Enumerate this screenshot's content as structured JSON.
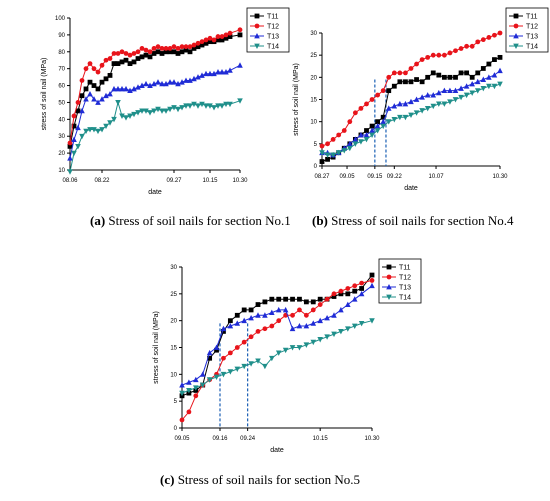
{
  "legend_order": [
    "T11",
    "T12",
    "T13",
    "T14"
  ],
  "styles": {
    "T11": {
      "color": "#000000",
      "marker": "square"
    },
    "T12": {
      "color": "#e8141b",
      "marker": "circle"
    },
    "T13": {
      "color": "#1f2bd6",
      "marker": "triangle"
    },
    "T14": {
      "color": "#1f8f8a",
      "marker": "triangle-down"
    }
  },
  "dash_color": "#1a5fb4",
  "chart_data": [
    {
      "type": "line",
      "caption_letter": "(a)",
      "caption_text": " Stress of soil nails for section No.1",
      "xlabel": "date",
      "ylabel": "stress of soil nail (MPa)",
      "ylim": [
        10,
        100
      ],
      "yticks": [
        10,
        20,
        30,
        40,
        50,
        60,
        70,
        80,
        90,
        100
      ],
      "xlim": [
        0,
        85
      ],
      "xticks": [
        {
          "x": 0,
          "label": "08.06"
        },
        {
          "x": 16,
          "label": "08.22"
        },
        {
          "x": 52,
          "label": "09.27"
        },
        {
          "x": 70,
          "label": "10.15"
        },
        {
          "x": 85,
          "label": "10.30"
        }
      ],
      "x": [
        0,
        2,
        4,
        6,
        8,
        10,
        12,
        14,
        16,
        18,
        20,
        22,
        24,
        26,
        28,
        30,
        32,
        34,
        36,
        38,
        40,
        42,
        44,
        46,
        48,
        50,
        52,
        54,
        56,
        58,
        60,
        62,
        64,
        66,
        68,
        70,
        72,
        74,
        76,
        78,
        80,
        85
      ],
      "series": [
        {
          "name": "T11",
          "values": [
            24,
            36,
            45,
            54,
            58,
            62,
            60,
            58,
            62,
            64,
            66,
            73,
            73,
            74,
            75,
            73,
            74,
            76,
            77,
            78,
            77,
            79,
            80,
            79,
            80,
            80,
            80,
            79,
            80,
            81,
            80,
            82,
            83,
            84,
            85,
            86,
            86,
            87,
            87,
            88,
            89,
            90
          ]
        },
        {
          "name": "T12",
          "values": [
            26,
            42,
            50,
            63,
            70,
            73,
            70,
            68,
            72,
            75,
            76,
            79,
            79,
            80,
            79,
            78,
            79,
            80,
            82,
            81,
            80,
            82,
            83,
            82,
            82,
            82,
            83,
            82,
            83,
            83,
            83,
            84,
            85,
            86,
            87,
            88,
            87,
            89,
            89,
            90,
            91,
            93
          ]
        },
        {
          "name": "T13",
          "values": [
            17,
            28,
            35,
            45,
            52,
            55,
            52,
            50,
            52,
            54,
            55,
            58,
            58,
            58,
            58,
            57,
            58,
            59,
            60,
            61,
            60,
            61,
            62,
            61,
            61,
            62,
            62,
            61,
            62,
            63,
            63,
            64,
            65,
            66,
            67,
            67,
            67,
            68,
            68,
            68,
            69,
            72
          ]
        },
        {
          "name": "T14",
          "values": [
            9,
            20,
            24,
            30,
            33,
            34,
            34,
            33,
            34,
            36,
            38,
            40,
            50,
            42,
            41,
            42,
            43,
            44,
            45,
            45,
            44,
            45,
            46,
            45,
            45,
            46,
            47,
            46,
            47,
            48,
            48,
            49,
            48,
            49,
            48,
            48,
            47,
            48,
            48,
            49,
            49,
            51
          ]
        }
      ],
      "dashed_x": [],
      "legend_position": "top-right"
    },
    {
      "type": "line",
      "caption_letter": "(b)",
      "caption_text": " Stress of soil nails for section No.4",
      "xlabel": "date",
      "ylabel": "stress of soil nail (MPa)",
      "ylim": [
        0,
        30
      ],
      "yticks": [
        0,
        5,
        10,
        15,
        20,
        25,
        30
      ],
      "xlim": [
        0,
        64
      ],
      "xticks": [
        {
          "x": 0,
          "label": "08.27"
        },
        {
          "x": 9,
          "label": "09.05"
        },
        {
          "x": 19,
          "label": "09.15"
        },
        {
          "x": 26,
          "label": "09.22"
        },
        {
          "x": 41,
          "label": "10.07"
        },
        {
          "x": 64,
          "label": "10.30"
        }
      ],
      "x": [
        0,
        2,
        4,
        6,
        8,
        10,
        12,
        14,
        16,
        18,
        20,
        22,
        24,
        26,
        28,
        30,
        32,
        34,
        36,
        38,
        40,
        42,
        44,
        46,
        48,
        50,
        52,
        54,
        56,
        58,
        60,
        62,
        64
      ],
      "series": [
        {
          "name": "T11",
          "values": [
            1,
            1.5,
            2,
            3,
            4,
            5,
            6,
            7,
            8,
            9,
            10,
            11,
            17,
            18,
            19,
            19,
            19,
            19.5,
            19,
            20,
            21,
            20.5,
            20,
            20,
            20,
            21,
            21,
            20,
            21,
            22,
            23,
            24,
            24.5
          ]
        },
        {
          "name": "T12",
          "values": [
            4.5,
            5,
            6,
            7,
            8,
            10,
            12,
            13,
            14,
            15,
            16,
            17,
            20,
            21,
            21,
            21,
            22,
            23,
            24,
            24.5,
            25,
            25,
            25,
            25.5,
            26,
            26.5,
            27,
            27,
            28,
            28.5,
            29,
            29.5,
            30
          ]
        },
        {
          "name": "T13",
          "values": [
            3,
            3,
            2.5,
            3,
            4,
            5,
            6,
            7,
            7,
            8,
            9,
            10,
            13,
            13.5,
            14,
            14,
            14.5,
            15,
            15.5,
            16,
            16,
            16.5,
            17,
            17,
            17,
            17.5,
            18,
            18.5,
            19,
            19.5,
            20,
            20.5,
            21.5
          ]
        },
        {
          "name": "T14",
          "values": [
            3,
            2.5,
            2.5,
            3,
            3.5,
            4,
            5,
            5.5,
            6,
            7,
            8,
            9,
            10,
            10.5,
            11,
            11,
            11.5,
            12,
            12.5,
            13,
            13.5,
            14,
            14,
            14.5,
            15,
            15.5,
            16,
            16.5,
            17,
            17.5,
            18,
            18,
            18.5
          ]
        }
      ],
      "dashed_x": [
        19,
        23
      ],
      "legend_position": "top-right"
    },
    {
      "type": "line",
      "caption_letter": "(c)",
      "caption_text": " Stress of soil nails for section No.5",
      "xlabel": "date",
      "ylabel": "stress of soil nail (MPa)",
      "ylim": [
        0,
        30
      ],
      "yticks": [
        0,
        5,
        10,
        15,
        20,
        25,
        30
      ],
      "xlim": [
        0,
        55
      ],
      "xticks": [
        {
          "x": 0,
          "label": "09.05"
        },
        {
          "x": 11,
          "label": "09.16"
        },
        {
          "x": 19,
          "label": "09.24"
        },
        {
          "x": 40,
          "label": "10.15"
        },
        {
          "x": 55,
          "label": "10.30"
        }
      ],
      "x": [
        0,
        2,
        4,
        6,
        8,
        10,
        12,
        14,
        16,
        18,
        20,
        22,
        24,
        26,
        28,
        30,
        32,
        34,
        36,
        38,
        40,
        42,
        44,
        46,
        48,
        50,
        52,
        55
      ],
      "series": [
        {
          "name": "T11",
          "values": [
            6,
            6.5,
            7,
            8,
            13,
            14.5,
            18,
            20,
            21,
            22,
            22,
            23,
            23.5,
            24,
            24,
            24,
            24,
            24,
            23.5,
            23.5,
            24,
            24,
            24.5,
            25,
            25,
            25.5,
            26,
            28.5
          ]
        },
        {
          "name": "T12",
          "values": [
            1.5,
            3,
            6,
            8,
            9,
            10,
            13,
            14,
            15,
            16,
            17,
            18,
            18.5,
            19,
            20,
            21,
            21,
            22,
            21,
            22,
            23,
            24,
            25,
            25.5,
            26,
            26.5,
            27,
            27.5
          ]
        },
        {
          "name": "T13",
          "values": [
            8,
            8.5,
            9,
            10,
            14,
            15,
            18.5,
            19,
            19.5,
            20,
            20.5,
            21,
            21,
            21.5,
            22,
            22,
            18.5,
            19,
            19,
            19.5,
            20,
            20.5,
            21,
            22,
            23,
            24,
            25,
            26.5
          ]
        },
        {
          "name": "T14",
          "values": [
            6.5,
            7,
            7.5,
            8,
            9,
            9.5,
            10,
            10.5,
            11,
            11.5,
            12,
            12.5,
            11.5,
            13,
            14,
            14.5,
            15,
            15,
            15.5,
            16,
            16.5,
            17,
            17.5,
            18,
            18.5,
            19,
            19.5,
            20
          ]
        }
      ],
      "dashed_x": [
        11,
        19
      ],
      "legend_position": "top-right"
    }
  ]
}
